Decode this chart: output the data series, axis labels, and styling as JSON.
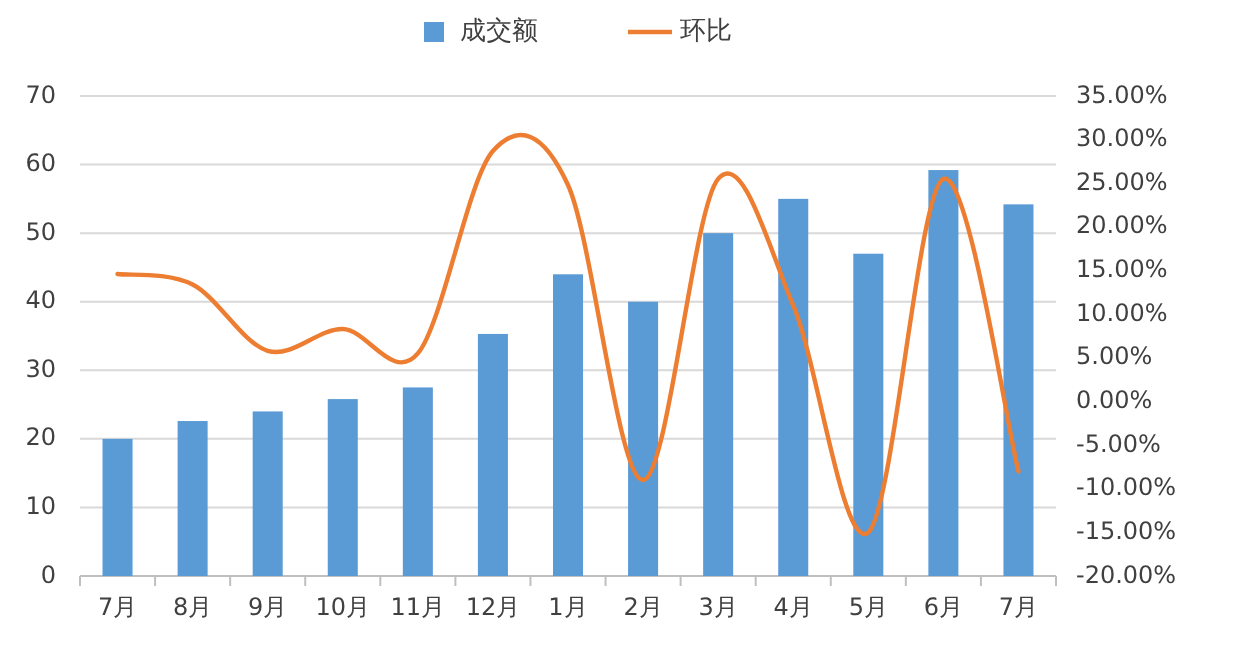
{
  "chart_data": {
    "type": "bar",
    "categories": [
      "7月",
      "8月",
      "9月",
      "10月",
      "11月",
      "12月",
      "1月",
      "2月",
      "3月",
      "4月",
      "5月",
      "6月",
      "7月"
    ],
    "series": [
      {
        "name": "成交额",
        "color": "#5b9bd5",
        "values": [
          20,
          22.6,
          24,
          25.8,
          27.5,
          35.3,
          44,
          40,
          50,
          55,
          47,
          59.2,
          54.2
        ]
      },
      {
        "name": "环比",
        "type": "line",
        "axis": "y2",
        "color": "#ed7d31",
        "values": [
          14.6,
          13.4,
          5.8,
          8.3,
          5.5,
          28.7,
          24.8,
          -9,
          25.5,
          11,
          -15,
          25.5,
          -8
        ]
      }
    ],
    "ylim": [
      0,
      70
    ],
    "yticks": [
      0,
      10,
      20,
      30,
      40,
      50,
      60,
      70
    ],
    "y2lim": [
      -20,
      35
    ],
    "y2ticks": [
      {
        "value": -20,
        "label": "-20.00%"
      },
      {
        "value": -15,
        "label": "-15.00%"
      },
      {
        "value": -10,
        "label": "-10.00%"
      },
      {
        "value": -5,
        "label": "-5.00%"
      },
      {
        "value": 0,
        "label": "0.00%"
      },
      {
        "value": 5,
        "label": "5.00%"
      },
      {
        "value": 10,
        "label": "10.00%"
      },
      {
        "value": 15,
        "label": "15.00%"
      },
      {
        "value": 20,
        "label": "20.00%"
      },
      {
        "value": 25,
        "label": "25.00%"
      },
      {
        "value": 30,
        "label": "30.00%"
      },
      {
        "value": 35,
        "label": "35.00%"
      }
    ],
    "grid": "y",
    "legend": "top",
    "marker": "none",
    "line_style": "solid"
  }
}
